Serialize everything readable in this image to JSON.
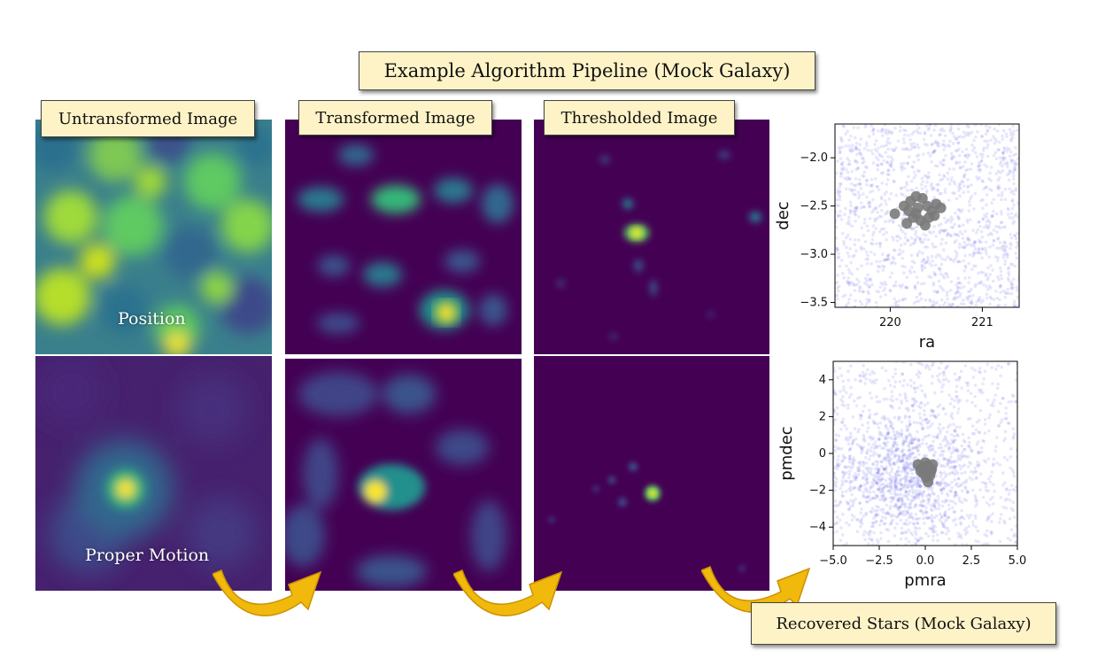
{
  "title": "Example Algorithm Pipeline (Mock Galaxy)",
  "column_labels": [
    "Untransformed Image",
    "Transformed Image",
    "Thresholded Image"
  ],
  "row_captions": {
    "position": "Position",
    "proper_motion": "Proper Motion"
  },
  "result_label": "Recovered Stars (Mock Galaxy)",
  "colors": {
    "label_bg": "#fef3c7",
    "viridis_dark": "#440154",
    "viridis_teal": "#21908d",
    "viridis_yellow": "#fde725",
    "background_stars": "#3b3be8",
    "recovered_stars": "#7a7a7a",
    "arrow": "#f2b90d"
  },
  "chart_data": [
    {
      "type": "scatter",
      "xlabel": "ra",
      "ylabel": "dec",
      "xlim": [
        219.4,
        221.4
      ],
      "ylim": [
        -3.55,
        -1.65
      ],
      "xticks": [
        220,
        221
      ],
      "yticks": [
        -2.0,
        -2.5,
        -3.0,
        -3.5
      ],
      "xtick_labels": [
        "220",
        "221"
      ],
      "ytick_labels": [
        "−2.0",
        "−2.5",
        "−3.0",
        "−3.5"
      ],
      "series": [
        {
          "role": "background",
          "color": "#3b3be8",
          "n": 1400,
          "distribution": "uniform"
        },
        {
          "role": "recovered",
          "color": "#7a7a7a",
          "points": [
            [
              220.05,
              -2.58
            ],
            [
              220.15,
              -2.5
            ],
            [
              220.22,
              -2.45
            ],
            [
              220.28,
              -2.4
            ],
            [
              220.35,
              -2.42
            ],
            [
              220.2,
              -2.55
            ],
            [
              220.3,
              -2.52
            ],
            [
              220.4,
              -2.5
            ],
            [
              220.45,
              -2.55
            ],
            [
              220.5,
              -2.48
            ],
            [
              220.55,
              -2.52
            ],
            [
              220.25,
              -2.62
            ],
            [
              220.33,
              -2.65
            ],
            [
              220.42,
              -2.62
            ],
            [
              220.18,
              -2.68
            ],
            [
              220.38,
              -2.7
            ],
            [
              220.28,
              -2.58
            ],
            [
              220.48,
              -2.6
            ]
          ]
        }
      ]
    },
    {
      "type": "scatter",
      "xlabel": "pmra",
      "ylabel": "pmdec",
      "xlim": [
        -5.0,
        5.0
      ],
      "ylim": [
        -5.0,
        5.0
      ],
      "xticks": [
        -5.0,
        -2.5,
        0.0,
        2.5,
        5.0
      ],
      "yticks": [
        4,
        2,
        0,
        -2,
        -4
      ],
      "xtick_labels": [
        "−5.0",
        "−2.5",
        "0.0",
        "2.5",
        "5.0"
      ],
      "ytick_labels": [
        "4",
        "2",
        "0",
        "−2",
        "−4"
      ],
      "series": [
        {
          "role": "background",
          "color": "#3b3be8",
          "n": 1800,
          "distribution": "clustered"
        },
        {
          "role": "recovered",
          "color": "#7a7a7a",
          "points": [
            [
              -0.4,
              -0.6
            ],
            [
              -0.2,
              -0.8
            ],
            [
              0.0,
              -0.5
            ],
            [
              0.1,
              -0.9
            ],
            [
              0.2,
              -0.7
            ],
            [
              0.35,
              -0.85
            ],
            [
              -0.1,
              -1.1
            ],
            [
              0.05,
              -1.3
            ],
            [
              0.25,
              -1.2
            ],
            [
              0.15,
              -1.55
            ],
            [
              -0.25,
              -0.95
            ],
            [
              0.4,
              -0.6
            ],
            [
              0.0,
              -0.7
            ],
            [
              0.3,
              -1.0
            ]
          ]
        }
      ]
    }
  ]
}
